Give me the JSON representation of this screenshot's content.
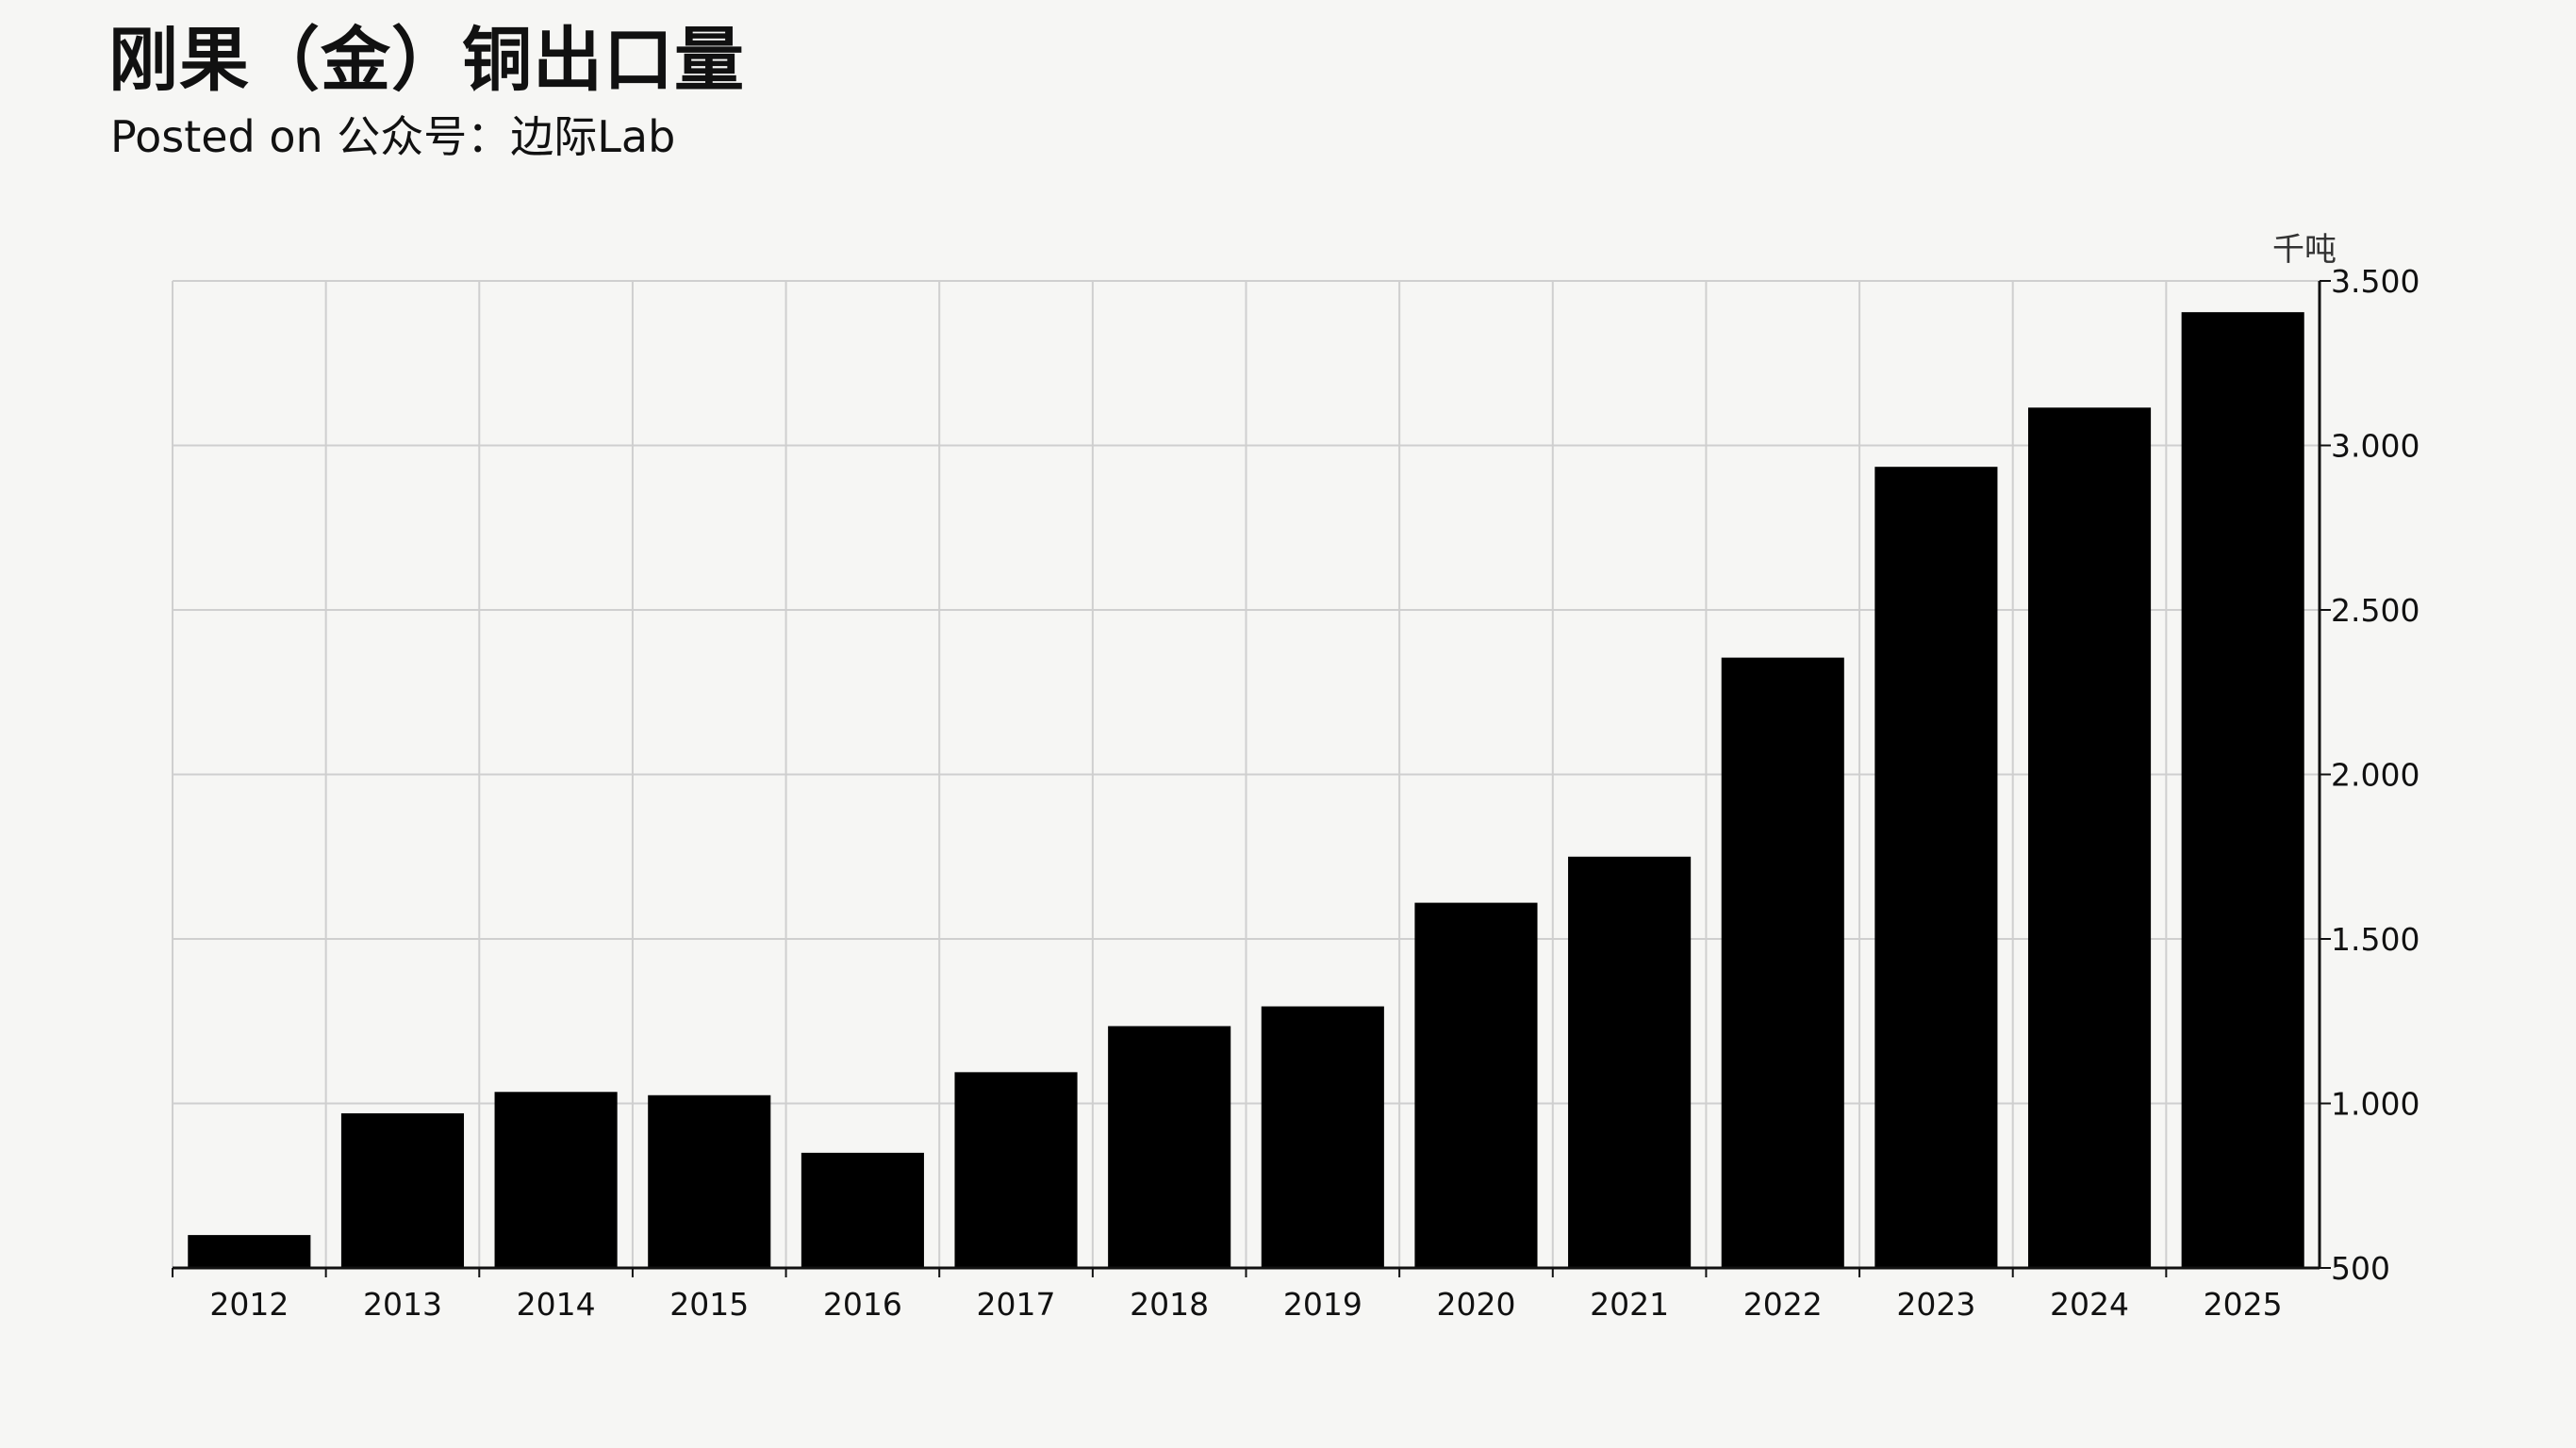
{
  "header": {
    "title": "刚果（金）铜出口量",
    "subtitle": "Posted on 公众号：边际Lab"
  },
  "chart_data": {
    "type": "bar",
    "title": "刚果（金）铜出口量",
    "subtitle": "Posted on 公众号：边际Lab",
    "unit": "千吨",
    "categories": [
      "2012",
      "2013",
      "2014",
      "2015",
      "2016",
      "2017",
      "2018",
      "2019",
      "2020",
      "2021",
      "2022",
      "2023",
      "2024",
      "2025"
    ],
    "series": [
      {
        "values": [
          600,
          970,
          1035,
          1025,
          850,
          1095,
          1235,
          1295,
          1610,
          1750,
          2355,
          2935,
          3115,
          3405
        ]
      }
    ],
    "ylim": [
      500,
      3500
    ],
    "yticks": [
      500,
      1000,
      1500,
      2000,
      2500,
      3000,
      3500
    ],
    "ytick_labels": [
      "500",
      "1.000",
      "1.500",
      "2.000",
      "2.500",
      "3.000",
      "3.500"
    ],
    "y_axis_position": "right",
    "grid": true,
    "bar_color": "#000000",
    "grid_color": "#cfcfcf"
  }
}
